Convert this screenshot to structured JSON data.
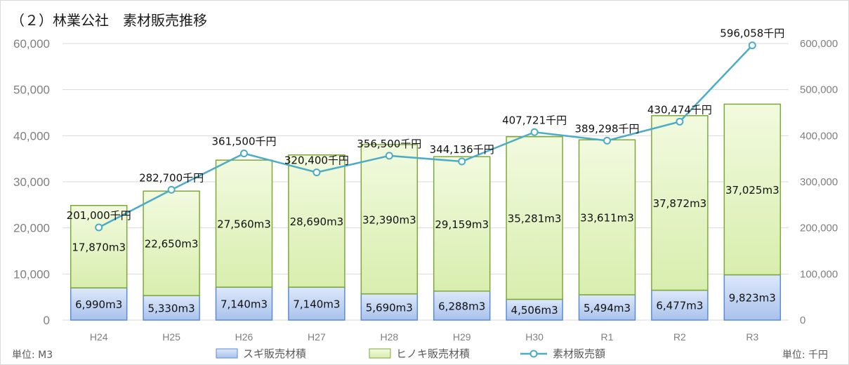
{
  "chart_data": {
    "type": "bar",
    "title": "（２）林業公社　素材販売推移",
    "categories": [
      "H24",
      "H25",
      "H26",
      "H27",
      "H28",
      "H29",
      "H30",
      "R1",
      "R2",
      "R3"
    ],
    "y_left": {
      "ylim": [
        0,
        60000
      ],
      "ticks": [
        "0",
        "10,000",
        "20,000",
        "30,000",
        "40,000",
        "50,000",
        "60,000"
      ],
      "unit": "単位: M3"
    },
    "y_right": {
      "ylim": [
        0,
        600000
      ],
      "ticks": [
        "0",
        "100,000",
        "200,000",
        "300,000",
        "400,000",
        "500,000",
        "600,000"
      ],
      "unit": "単位: 千円"
    },
    "grid": true,
    "legend_position": "bottom",
    "series": [
      {
        "name": "スギ販売材積",
        "kind": "stacked-bar",
        "axis": "left",
        "color": "#bcd0f0",
        "values": [
          6990,
          5330,
          7140,
          7140,
          5690,
          6288,
          4506,
          5494,
          6477,
          9823
        ],
        "labels": [
          "6,990m3",
          "5,330m3",
          "7,140m3",
          "7,140m3",
          "5,690m3",
          "6,288m3",
          "4,506m3",
          "5,494m3",
          "6,477m3",
          "9,823m3"
        ]
      },
      {
        "name": "ヒノキ販売材積",
        "kind": "stacked-bar",
        "axis": "left",
        "color": "#e6f5c8",
        "values": [
          17870,
          22650,
          27560,
          28690,
          32390,
          29159,
          35281,
          33611,
          37872,
          37025
        ],
        "labels": [
          "17,870m3",
          "22,650m3",
          "27,560m3",
          "28,690m3",
          "32,390m3",
          "29,159m3",
          "35,281m3",
          "33,611m3",
          "37,872m3",
          "37,025m3"
        ]
      },
      {
        "name": "素材販売額",
        "kind": "line",
        "axis": "right",
        "color": "#4bacc6",
        "values": [
          201000,
          282700,
          361500,
          320400,
          356500,
          344136,
          407721,
          389298,
          430474,
          596058
        ],
        "labels": [
          "201,000千円",
          "282,700千円",
          "361,500千円",
          "320,400千円",
          "356,500千円",
          "344,136千円",
          "407,721千円",
          "389,298千円",
          "430,474千円",
          "596,058千円"
        ]
      }
    ]
  }
}
